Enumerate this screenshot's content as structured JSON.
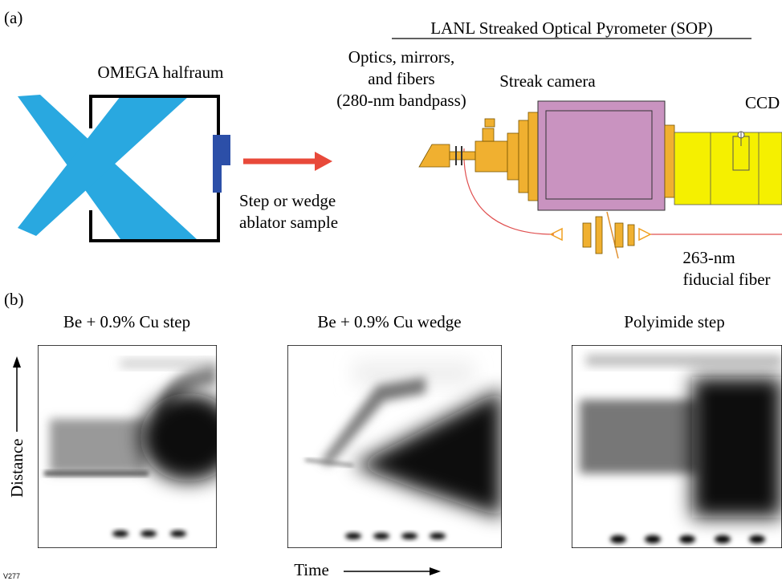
{
  "panel_a": {
    "label": "(a)",
    "title": "LANL Streaked Optical Pyrometer (SOP)",
    "target": "OMEGA halfraum",
    "sample": [
      "Step or wedge",
      "ablator sample"
    ],
    "optics": [
      "Optics, mirrors,",
      "and fibers",
      "(280-nm bandpass)"
    ],
    "camera": "Streak camera",
    "ccd": "CCD",
    "fiducial": [
      "263-nm",
      "fiducial fiber"
    ]
  },
  "panel_b": {
    "label": "(b)",
    "images": [
      {
        "title": "Be + 0.9% Cu step"
      },
      {
        "title": "Be + 0.9% Cu wedge"
      },
      {
        "title": "Polyimide step"
      }
    ],
    "y_axis": "Distance",
    "x_axis": "Time"
  },
  "figure_id": "V277"
}
